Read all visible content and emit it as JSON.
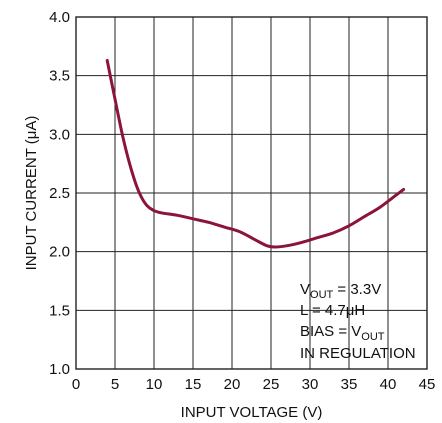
{
  "chart_data": {
    "type": "line",
    "title": "",
    "xlabel": "INPUT VOLTAGE (V)",
    "ylabel": "INPUT CURRENT  (μA)",
    "xlim": [
      0,
      45
    ],
    "ylim": [
      1.0,
      4.0
    ],
    "x_ticks": [
      0,
      5,
      10,
      15,
      20,
      25,
      30,
      35,
      40,
      45
    ],
    "x_tick_labels": [
      "0",
      "5",
      "10",
      "15",
      "20",
      "25",
      "30",
      "35",
      "40",
      "45"
    ],
    "y_ticks": [
      1.0,
      1.5,
      2.0,
      2.5,
      3.0,
      3.5,
      4.0
    ],
    "y_tick_labels": [
      "1.0",
      "1.5",
      "2.0",
      "2.5",
      "3.0",
      "3.5",
      "4.0"
    ],
    "grid": true,
    "series_color": "#8b1538",
    "series": [
      {
        "x": [
          4.0,
          5.0,
          6.0,
          7.0,
          8.0,
          9.0,
          10.0,
          11.0,
          13.0,
          15.0,
          17.0,
          19.0,
          21.0,
          23.0,
          24.5,
          25.5,
          27.0,
          29.0,
          31.0,
          33.0,
          35.0,
          37.0,
          39.0,
          41.0,
          42.0
        ],
        "y": [
          3.63,
          3.3,
          2.98,
          2.72,
          2.52,
          2.4,
          2.35,
          2.33,
          2.31,
          2.28,
          2.25,
          2.21,
          2.17,
          2.1,
          2.05,
          2.04,
          2.05,
          2.08,
          2.12,
          2.16,
          2.22,
          2.3,
          2.38,
          2.48,
          2.53
        ]
      }
    ],
    "annotations": {
      "line1_main": "V",
      "line1_sub": "OUT",
      "line1_rest": " = 3.3V",
      "line2": "L = 4.7μH",
      "line3_main": "BIAS = V",
      "line3_sub": "OUT",
      "line4": "IN REGULATION"
    }
  }
}
